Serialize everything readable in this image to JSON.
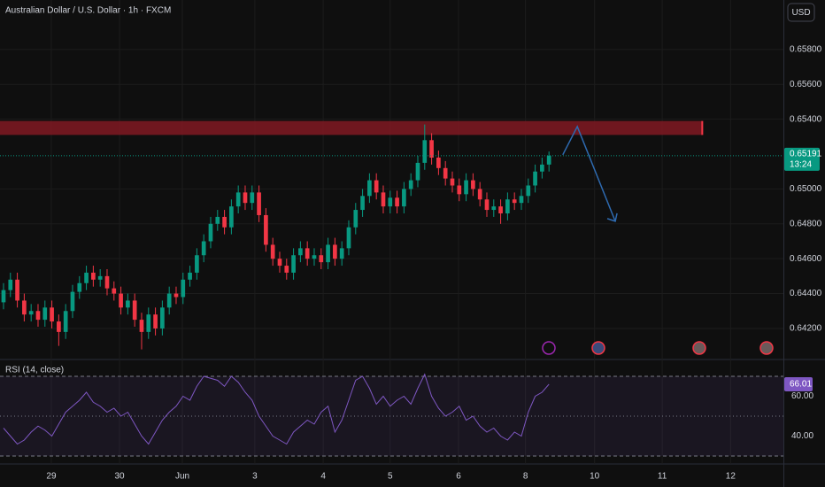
{
  "chart_data": {
    "type": "candlestick",
    "title": "Australian Dollar / U.S. Dollar · 1h · FXCM",
    "currency": "USD",
    "countdown": "13:24",
    "up_color": "#089981",
    "down_color": "#f23645",
    "open": [
      0.6435,
      0.6442,
      0.6448,
      0.6436,
      0.6428,
      0.643,
      0.6425,
      0.6432,
      0.6424,
      0.6418,
      0.643,
      0.6441,
      0.6446,
      0.6452,
      0.6448,
      0.645,
      0.6443,
      0.644,
      0.6432,
      0.6436,
      0.6425,
      0.6418,
      0.6428,
      0.642,
      0.6432,
      0.644,
      0.6438,
      0.6448,
      0.6452,
      0.6462,
      0.647,
      0.648,
      0.6484,
      0.6478,
      0.649,
      0.6498,
      0.6492,
      0.6498,
      0.6485,
      0.6468,
      0.646,
      0.6456,
      0.6452,
      0.6462,
      0.6466,
      0.646,
      0.6462,
      0.6458,
      0.6468,
      0.646,
      0.6466,
      0.6478,
      0.6488,
      0.6496,
      0.6505,
      0.6498,
      0.649,
      0.6495,
      0.649,
      0.65,
      0.6505,
      0.6515,
      0.6528,
      0.6518,
      0.6512,
      0.6506,
      0.6502,
      0.6497,
      0.6505,
      0.65,
      0.6494,
      0.6488,
      0.649,
      0.6486,
      0.6494,
      0.6492,
      0.6496,
      0.6502,
      0.651,
      0.6514
    ],
    "high": [
      0.6446,
      0.6452,
      0.6452,
      0.644,
      0.6434,
      0.6434,
      0.6436,
      0.6436,
      0.6428,
      0.6434,
      0.6445,
      0.645,
      0.6456,
      0.6456,
      0.6454,
      0.6454,
      0.6447,
      0.6444,
      0.644,
      0.644,
      0.6429,
      0.6432,
      0.6432,
      0.6436,
      0.6444,
      0.6444,
      0.6452,
      0.6456,
      0.6466,
      0.6474,
      0.6484,
      0.6488,
      0.6488,
      0.6494,
      0.6502,
      0.6502,
      0.6502,
      0.6502,
      0.6489,
      0.6472,
      0.6464,
      0.646,
      0.6466,
      0.647,
      0.647,
      0.6466,
      0.6466,
      0.6472,
      0.6472,
      0.647,
      0.6482,
      0.6492,
      0.65,
      0.6509,
      0.6509,
      0.6502,
      0.6499,
      0.6499,
      0.6504,
      0.6509,
      0.6519,
      0.6537,
      0.6532,
      0.6522,
      0.6516,
      0.651,
      0.6506,
      0.6509,
      0.6509,
      0.6504,
      0.6498,
      0.6494,
      0.6494,
      0.6498,
      0.6498,
      0.65,
      0.6506,
      0.6514,
      0.6518,
      0.65215
    ],
    "low": [
      0.6431,
      0.6438,
      0.6432,
      0.6424,
      0.6424,
      0.6421,
      0.6421,
      0.642,
      0.641,
      0.6414,
      0.6426,
      0.6437,
      0.6442,
      0.6444,
      0.6444,
      0.6439,
      0.6436,
      0.6428,
      0.6428,
      0.6421,
      0.6408,
      0.6414,
      0.6416,
      0.6416,
      0.6428,
      0.6434,
      0.6434,
      0.6444,
      0.6448,
      0.6458,
      0.6466,
      0.6476,
      0.6474,
      0.6474,
      0.6486,
      0.6488,
      0.6488,
      0.6481,
      0.6464,
      0.6456,
      0.6452,
      0.6448,
      0.6448,
      0.6458,
      0.6456,
      0.6456,
      0.6454,
      0.6454,
      0.6456,
      0.6456,
      0.6462,
      0.6474,
      0.6484,
      0.6492,
      0.6494,
      0.6486,
      0.6486,
      0.6486,
      0.6486,
      0.6496,
      0.6501,
      0.6511,
      0.6514,
      0.6508,
      0.6502,
      0.6498,
      0.6493,
      0.6493,
      0.6496,
      0.649,
      0.6484,
      0.6484,
      0.648,
      0.6482,
      0.6488,
      0.6488,
      0.6492,
      0.6498,
      0.6506,
      0.651
    ],
    "close": [
      0.6442,
      0.6448,
      0.6436,
      0.6428,
      0.643,
      0.6425,
      0.6432,
      0.6424,
      0.6418,
      0.643,
      0.6441,
      0.6446,
      0.6452,
      0.6448,
      0.645,
      0.6443,
      0.644,
      0.6432,
      0.6436,
      0.6425,
      0.6418,
      0.6428,
      0.642,
      0.6432,
      0.644,
      0.6438,
      0.6448,
      0.6452,
      0.6462,
      0.647,
      0.648,
      0.6484,
      0.6478,
      0.649,
      0.6498,
      0.6492,
      0.6498,
      0.6485,
      0.6468,
      0.646,
      0.6456,
      0.6452,
      0.6462,
      0.6466,
      0.646,
      0.6462,
      0.6458,
      0.6468,
      0.646,
      0.6466,
      0.6478,
      0.6488,
      0.6496,
      0.6505,
      0.6498,
      0.649,
      0.6495,
      0.649,
      0.65,
      0.6505,
      0.6515,
      0.6528,
      0.6518,
      0.6512,
      0.6506,
      0.6502,
      0.6497,
      0.6505,
      0.65,
      0.6494,
      0.6488,
      0.649,
      0.6486,
      0.6494,
      0.6492,
      0.6496,
      0.6502,
      0.651,
      0.6514,
      0.65191
    ],
    "xlim": [
      -0.51,
      112.95
    ],
    "xticks": [
      {
        "value": 6.92,
        "label": "29"
      },
      {
        "value": 16.8,
        "label": "30"
      },
      {
        "value": 25.9,
        "label": "Jun"
      },
      {
        "value": 36.4,
        "label": "3"
      },
      {
        "value": 46.3,
        "label": "4"
      },
      {
        "value": 56.0,
        "label": "5"
      },
      {
        "value": 65.9,
        "label": "6"
      },
      {
        "value": 75.6,
        "label": "8"
      },
      {
        "value": 85.6,
        "label": "10"
      },
      {
        "value": 95.4,
        "label": "11"
      },
      {
        "value": 105.3,
        "label": "12"
      }
    ],
    "ylim": [
      0.64027,
      0.66084
    ],
    "yticks": [
      {
        "value": 0.658,
        "label": "0.65800"
      },
      {
        "value": 0.656,
        "label": "0.65600"
      },
      {
        "value": 0.654,
        "label": "0.65400"
      },
      {
        "value": 0.65,
        "label": "0.65000"
      },
      {
        "value": 0.648,
        "label": "0.64800"
      },
      {
        "value": 0.646,
        "label": "0.64600"
      },
      {
        "value": 0.644,
        "label": "0.64400"
      },
      {
        "value": 0.642,
        "label": "0.64200"
      }
    ],
    "grid": true,
    "zone": {
      "color": "#801922",
      "x": [
        -0.51,
        101.2
      ],
      "y": [
        0.6531,
        0.6539
      ]
    },
    "arrow": {
      "color": "#2e6ab0",
      "x": [
        81.0,
        83.1,
        88.6
      ],
      "y": [
        0.65196,
        0.65358,
        0.64815
      ]
    },
    "indicator": {
      "type": "line",
      "title": "RSI (14, close)",
      "color": "#7e57c2",
      "values": [
        44,
        40,
        36,
        38,
        42,
        45,
        43,
        40,
        46,
        52,
        55,
        58,
        62,
        57,
        55,
        52,
        54,
        50,
        52,
        46,
        40,
        36,
        42,
        48,
        52,
        55,
        60,
        58,
        65,
        70,
        69,
        68,
        65,
        70,
        67,
        62,
        58,
        50,
        45,
        40,
        38,
        36,
        42,
        45,
        48,
        46,
        52,
        55,
        42,
        48,
        58,
        68,
        70,
        64,
        56,
        60,
        55,
        58,
        60,
        56,
        64,
        71,
        60,
        54,
        50,
        52,
        55,
        48,
        50,
        45,
        42,
        44,
        40,
        38,
        42,
        40,
        52,
        60,
        62,
        66.01
      ],
      "ylim": [
        26,
        78
      ],
      "yticks": [
        {
          "value": 60,
          "label": "60.00"
        },
        {
          "value": 40,
          "label": "40.00"
        }
      ],
      "levels": [
        70,
        50,
        30
      ]
    }
  }
}
